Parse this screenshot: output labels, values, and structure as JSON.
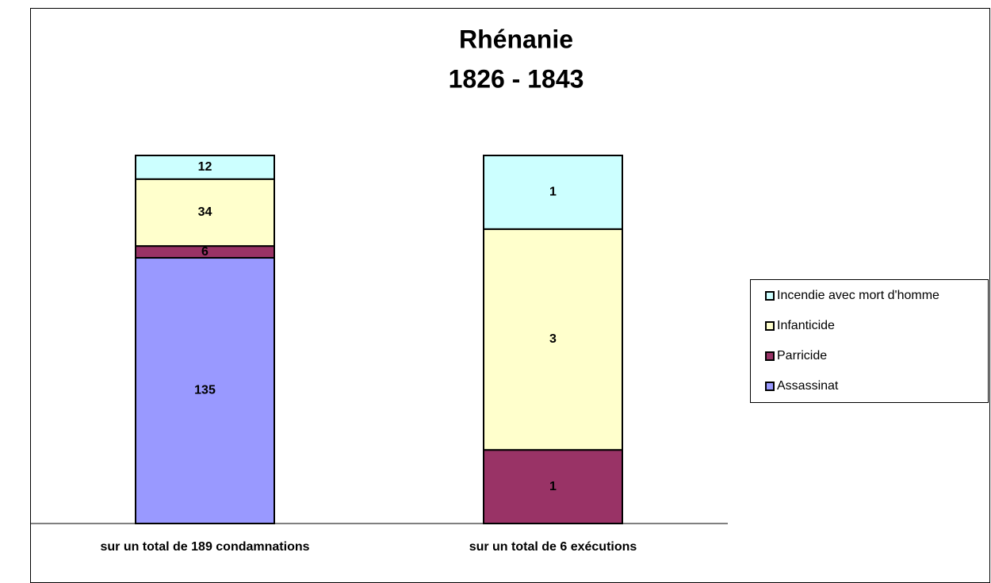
{
  "chart_data": {
    "type": "stacked_bar_100",
    "title": [
      "Rhénanie",
      "1826 - 1843"
    ],
    "categories": [
      "sur un total de 189 condamnations",
      "sur un total de 6 exécutions"
    ],
    "series": [
      {
        "name": "Assassinat",
        "color": "#9999ff",
        "values": [
          135,
          null
        ]
      },
      {
        "name": "Parricide",
        "color": "#993366",
        "values": [
          6,
          1
        ]
      },
      {
        "name": "Infanticide",
        "color": "#ffffcc",
        "values": [
          34,
          3
        ]
      },
      {
        "name": "Incendie avec mort d'homme",
        "color": "#ccffff",
        "values": [
          12,
          1
        ]
      }
    ],
    "legend": "right"
  }
}
